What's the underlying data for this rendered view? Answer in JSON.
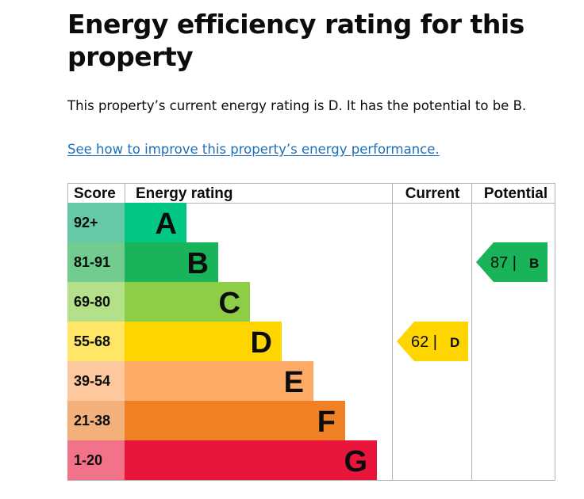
{
  "title": "Energy efficiency rating for this property",
  "summary": "This property’s current energy rating is D. It has the potential to be B.",
  "link_text": "See how to improve this property’s energy performance.",
  "chart_data": {
    "type": "table",
    "columns": [
      "Score",
      "Energy rating",
      "Current",
      "Potential"
    ],
    "bands": [
      {
        "score": "92+",
        "letter": "A",
        "color": "#008054",
        "band_color": "#00c781"
      },
      {
        "score": "81-91",
        "letter": "B",
        "color": "#19b459",
        "band_color": "#19b459"
      },
      {
        "score": "69-80",
        "letter": "C",
        "color": "#8dce46",
        "band_color": "#8dce46"
      },
      {
        "score": "55-68",
        "letter": "D",
        "color": "#ffd500",
        "band_color": "#ffd500"
      },
      {
        "score": "39-54",
        "letter": "E",
        "color": "#fcaa65",
        "band_color": "#fcaa65"
      },
      {
        "score": "21-38",
        "letter": "F",
        "color": "#ef8023",
        "band_color": "#ef8023"
      },
      {
        "score": "1-20",
        "letter": "G",
        "color": "#e9153b",
        "band_color": "#e9153b"
      }
    ],
    "score_cell_colors": [
      "#64c9a4",
      "#72cb8f",
      "#b4e08a",
      "#ffe666",
      "#fdc89d",
      "#f4b07a",
      "#f27389"
    ],
    "current": {
      "value": 62,
      "value_label": "62 |",
      "letter": "D",
      "color": "#ffd500"
    },
    "potential": {
      "value": 87,
      "value_label": "87 |",
      "letter": "B",
      "color": "#19b459"
    }
  }
}
